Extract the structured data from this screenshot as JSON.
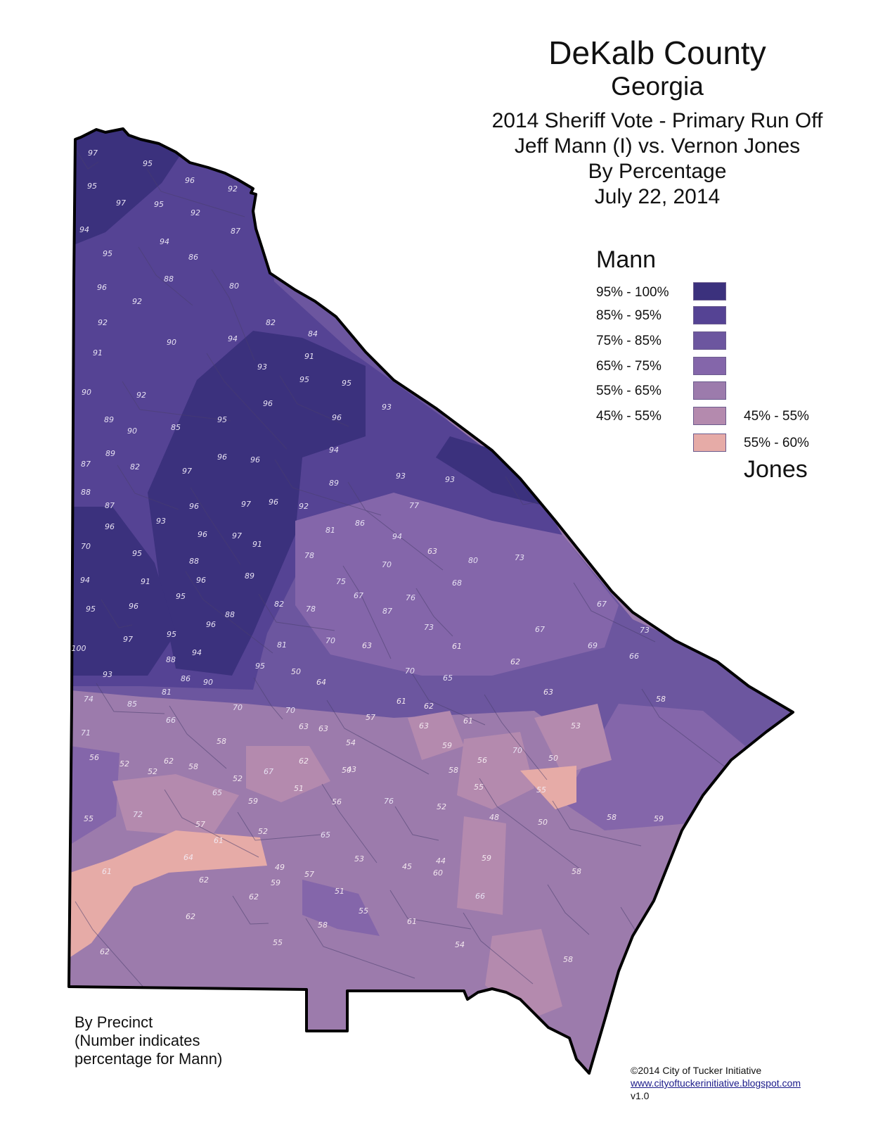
{
  "title": {
    "main": "DeKalb County",
    "state": "Georgia",
    "race": "2014 Sheriff Vote - Primary Run Off",
    "candidates": "Jeff Mann (I) vs. Vernon Jones",
    "measure": "By Percentage",
    "date": "July 22, 2014"
  },
  "legend": {
    "mann_label": "Mann",
    "jones_label": "Jones",
    "mann_classes": [
      {
        "label": "95% - 100%",
        "color": "#3b317d"
      },
      {
        "label": "85% - 95%",
        "color": "#554394"
      },
      {
        "label": "75% - 85%",
        "color": "#6c569f"
      },
      {
        "label": "65% - 75%",
        "color": "#8466aa"
      },
      {
        "label": "55% - 65%",
        "color": "#9c7bac"
      },
      {
        "label": "45% - 55%",
        "color": "#b48aae"
      }
    ],
    "jones_classes": [
      {
        "label": "45% - 55%",
        "color": "#b48aae"
      },
      {
        "label": "55% - 60%",
        "color": "#e6aba7"
      }
    ]
  },
  "note": {
    "line1": "By Precinct",
    "line2": "(Number indicates",
    "line3": "percentage for Mann)"
  },
  "credits": {
    "copyright": "©2014 City of Tucker Initiative",
    "url": "www.cityoftuckerinitiative.blogspot.com",
    "version": "v1.0"
  },
  "precinct_labels": [
    "97",
    "95",
    "96",
    "95",
    "92",
    "97",
    "95",
    "92",
    "94",
    "87",
    "94",
    "86",
    "95",
    "96",
    "88",
    "80",
    "92",
    "92",
    "82",
    "94",
    "84",
    "91",
    "90",
    "91",
    "93",
    "95",
    "95",
    "90",
    "92",
    "96",
    "89",
    "93",
    "96",
    "90",
    "85",
    "95",
    "89",
    "82",
    "97",
    "96",
    "96",
    "94",
    "87",
    "93",
    "89",
    "93",
    "88",
    "96",
    "97",
    "96",
    "92",
    "87",
    "86",
    "77",
    "96",
    "93",
    "96",
    "97",
    "81",
    "91",
    "70",
    "78",
    "94",
    "95",
    "88",
    "63",
    "80",
    "73",
    "70",
    "94",
    "91",
    "89",
    "75",
    "68",
    "96",
    "95",
    "82",
    "78",
    "67",
    "76",
    "95",
    "96",
    "87",
    "96",
    "88",
    "67",
    "73",
    "97",
    "95",
    "70",
    "63",
    "61",
    "67",
    "100",
    "69",
    "94",
    "81",
    "73",
    "88",
    "95",
    "66",
    "93",
    "86",
    "81",
    "90",
    "50",
    "64",
    "70",
    "62",
    "74",
    "85",
    "65",
    "66",
    "70",
    "70",
    "63",
    "58",
    "63",
    "61",
    "62",
    "63",
    "58",
    "61",
    "71",
    "57",
    "53",
    "59",
    "54",
    "63",
    "70",
    "56",
    "62",
    "50",
    "52",
    "52",
    "67",
    "62",
    "50",
    "56",
    "58",
    "65",
    "52",
    "51",
    "43",
    "58",
    "55",
    "55",
    "59",
    "56",
    "76",
    "52",
    "55",
    "72",
    "48",
    "58",
    "52",
    "57",
    "65",
    "50",
    "59",
    "61",
    "49",
    "53",
    "45",
    "44",
    "59",
    "64",
    "61",
    "62",
    "59",
    "57",
    "51",
    "60",
    "58",
    "62",
    "66",
    "55",
    "61",
    "62",
    "58",
    "62",
    "55",
    "54",
    "58"
  ]
}
